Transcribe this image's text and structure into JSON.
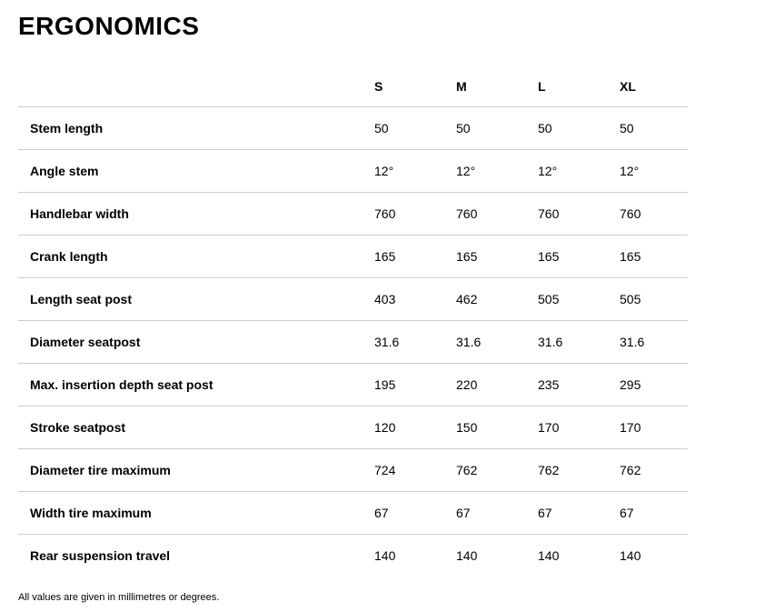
{
  "page": {
    "title": "ERGONOMICS",
    "footnote": "All values are given in millimetres or degrees."
  },
  "table": {
    "columns": [
      "S",
      "M",
      "L",
      "XL"
    ],
    "rows": [
      {
        "label": "Stem length",
        "values": [
          "50",
          "50",
          "50",
          "50"
        ]
      },
      {
        "label": "Angle stem",
        "values": [
          "12°",
          "12°",
          "12°",
          "12°"
        ]
      },
      {
        "label": "Handlebar width",
        "values": [
          "760",
          "760",
          "760",
          "760"
        ]
      },
      {
        "label": "Crank length",
        "values": [
          "165",
          "165",
          "165",
          "165"
        ]
      },
      {
        "label": "Length seat post",
        "values": [
          "403",
          "462",
          "505",
          "505"
        ]
      },
      {
        "label": "Diameter seatpost",
        "values": [
          "31.6",
          "31.6",
          "31.6",
          "31.6"
        ]
      },
      {
        "label": "Max. insertion depth seat post",
        "values": [
          "195",
          "220",
          "235",
          "295"
        ]
      },
      {
        "label": "Stroke seatpost",
        "values": [
          "120",
          "150",
          "170",
          "170"
        ]
      },
      {
        "label": "Diameter tire maximum",
        "values": [
          "724",
          "762",
          "762",
          "762"
        ]
      },
      {
        "label": "Width tire maximum",
        "values": [
          "67",
          "67",
          "67",
          "67"
        ]
      },
      {
        "label": "Rear suspension travel",
        "values": [
          "140",
          "140",
          "140",
          "140"
        ]
      }
    ]
  },
  "colors": {
    "background": "#ffffff",
    "text": "#000000",
    "divider": "#cccccc"
  }
}
